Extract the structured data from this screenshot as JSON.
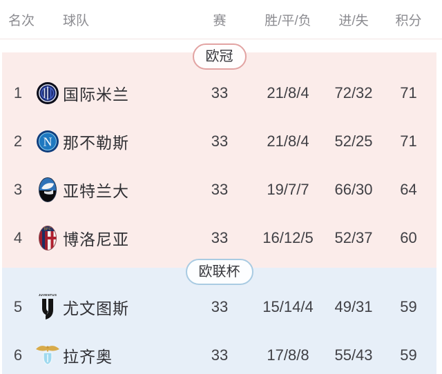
{
  "table": {
    "headers": {
      "rank": "名次",
      "team": "球队",
      "played": "赛",
      "wdl": "胜/平/负",
      "goals": "进/失",
      "points": "积分"
    },
    "sections": [
      {
        "id": "champions-league",
        "label": "欧冠",
        "colors": {
          "background": "#fbecea",
          "badge_border": "#e2a3a2"
        },
        "rows": [
          {
            "rank": "1",
            "team": "国际米兰",
            "logo": "inter-logo-icon",
            "played": "33",
            "wdl": "21/8/4",
            "goals": "72/32",
            "points": "71"
          },
          {
            "rank": "2",
            "team": "那不勒斯",
            "logo": "napoli-logo-icon",
            "played": "33",
            "wdl": "21/8/4",
            "goals": "52/25",
            "points": "71"
          },
          {
            "rank": "3",
            "team": "亚特兰大",
            "logo": "atalanta-logo-icon",
            "played": "33",
            "wdl": "19/7/7",
            "goals": "66/30",
            "points": "64"
          },
          {
            "rank": "4",
            "team": "博洛尼亚",
            "logo": "bologna-logo-icon",
            "played": "33",
            "wdl": "16/12/5",
            "goals": "52/37",
            "points": "60"
          }
        ]
      },
      {
        "id": "europa-league",
        "label": "欧联杯",
        "colors": {
          "background": "#e7eff8",
          "badge_border": "#a9cbe2"
        },
        "rows": [
          {
            "rank": "5",
            "team": "尤文图斯",
            "logo": "juventus-logo-icon",
            "played": "33",
            "wdl": "15/14/4",
            "goals": "49/31",
            "points": "59"
          },
          {
            "rank": "6",
            "team": "拉齐奥",
            "logo": "lazio-logo-icon",
            "played": "33",
            "wdl": "17/8/8",
            "goals": "55/43",
            "points": "59"
          }
        ]
      }
    ]
  }
}
